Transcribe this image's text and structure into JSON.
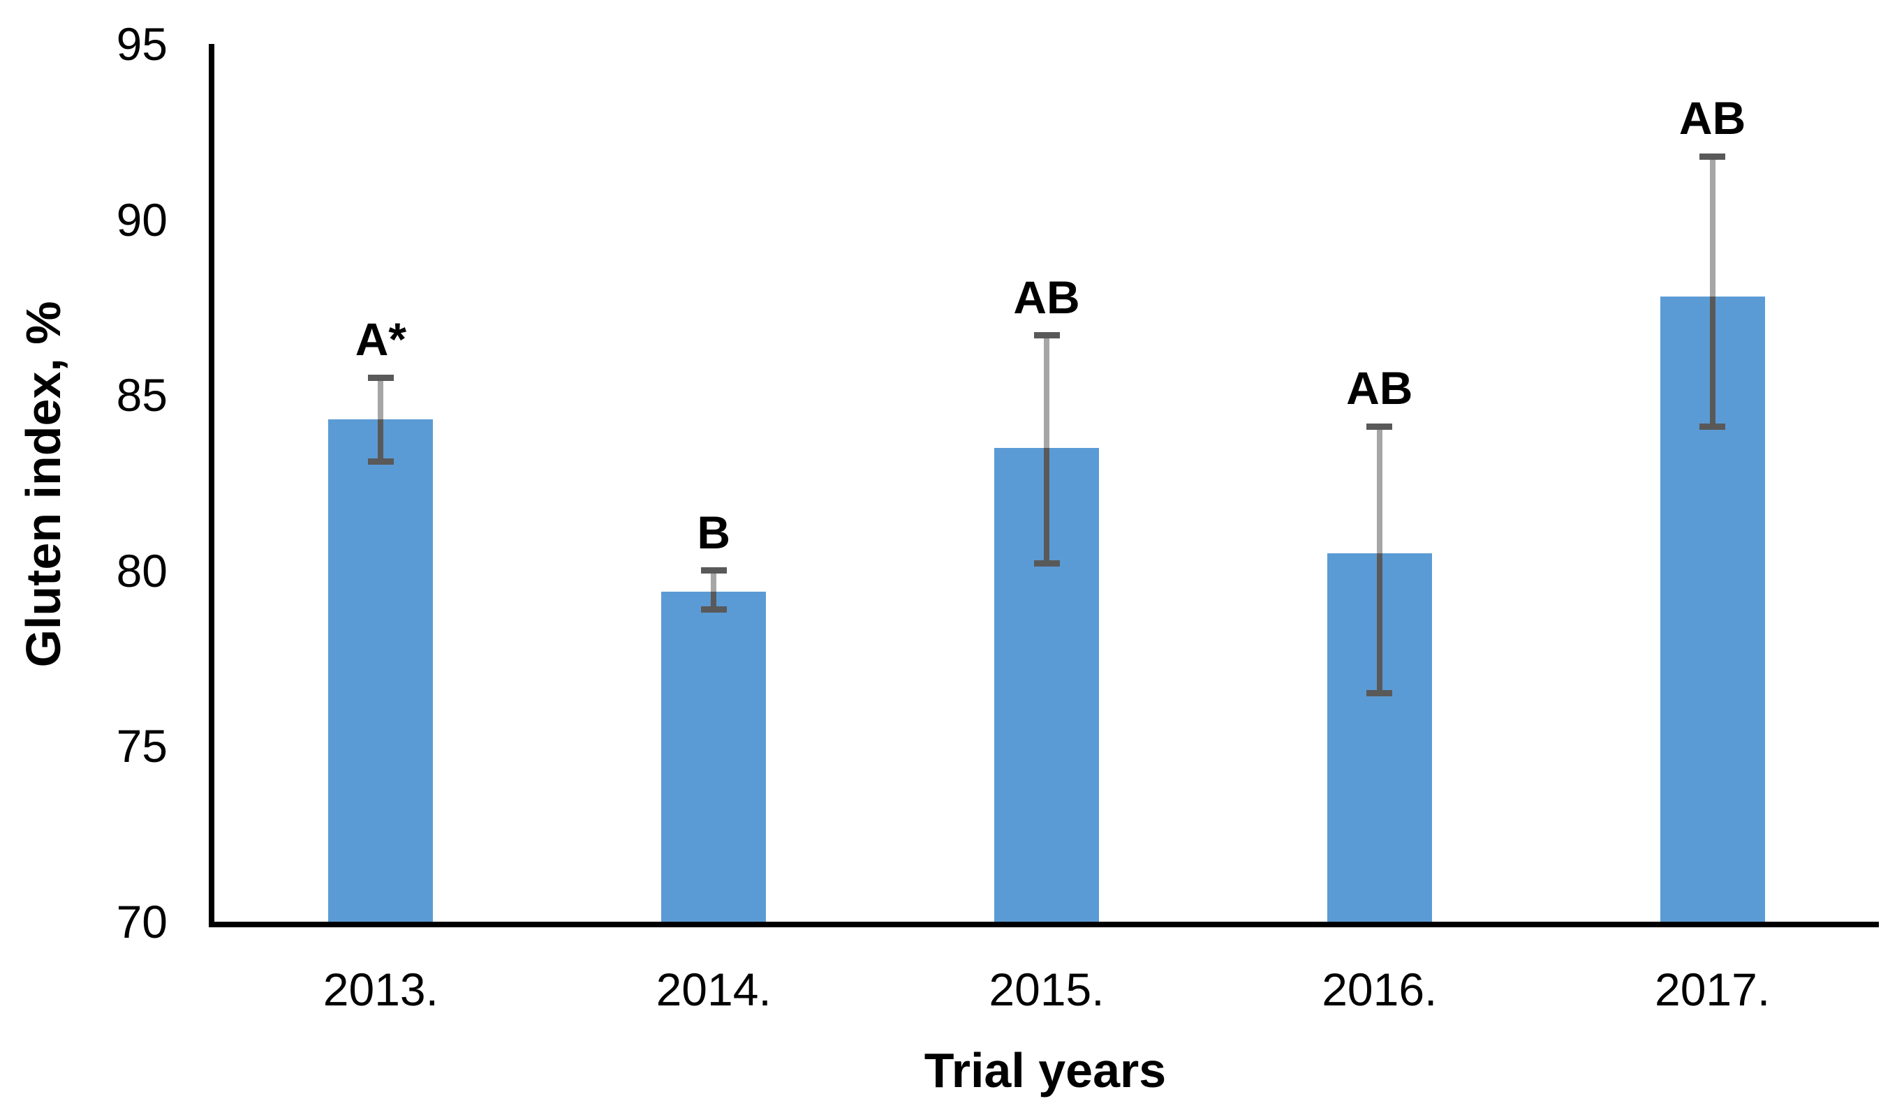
{
  "chart_data": {
    "type": "bar",
    "title": "",
    "xlabel": "Trial years",
    "ylabel": "Gluten index, %",
    "categories": [
      "2013.",
      "2014.",
      "2015.",
      "2016.",
      "2017."
    ],
    "values": [
      84.3,
      79.4,
      83.5,
      80.5,
      87.8
    ],
    "error_low": [
      83.1,
      78.9,
      80.2,
      76.5,
      84.1
    ],
    "error_high": [
      85.5,
      80.0,
      86.7,
      84.1,
      91.8
    ],
    "sig_labels": [
      "A*",
      "B",
      "AB",
      "AB",
      "AB"
    ],
    "ylim": [
      70,
      95
    ],
    "yticks": [
      70,
      75,
      80,
      85,
      90,
      95
    ],
    "grid": false,
    "legend": "none",
    "bar_color": "#5B9BD5",
    "error_dark_color": "#595959",
    "error_light_color": "#A6A6A6",
    "axis_color": "#000000"
  }
}
